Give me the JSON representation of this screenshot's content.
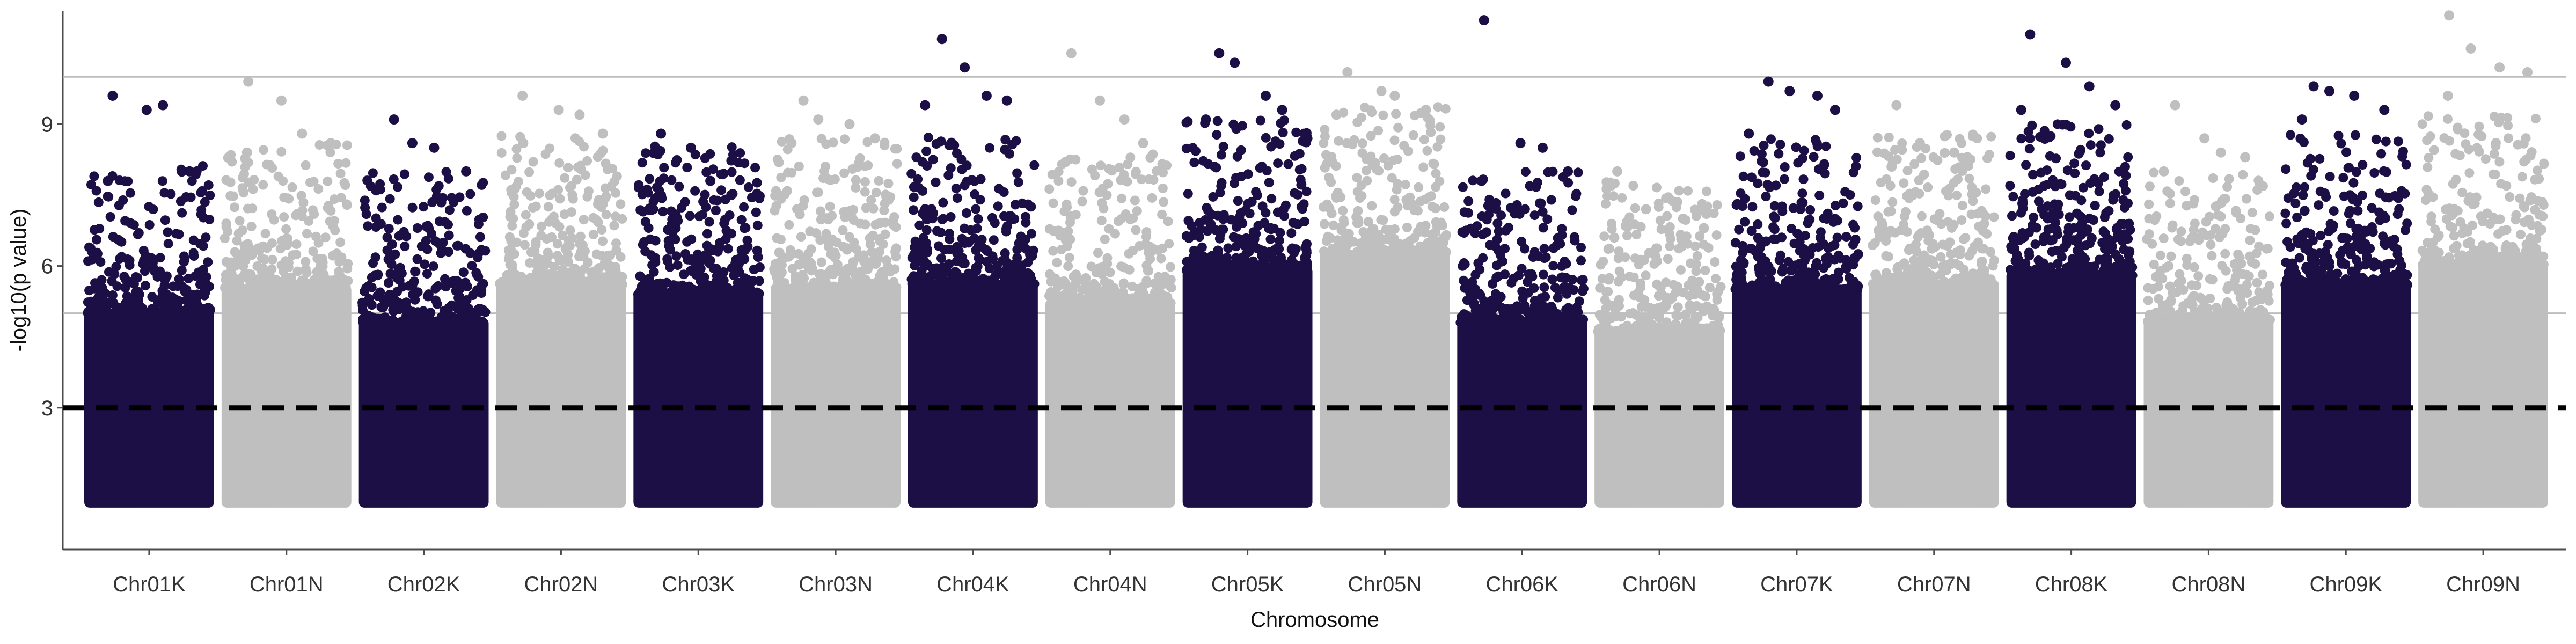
{
  "chart_data": {
    "type": "scatter",
    "subtype": "manhattan",
    "title": "",
    "xlabel": "Chromosome",
    "ylabel": "-log10(p value)",
    "categories": [
      "Chr01K",
      "Chr01N",
      "Chr02K",
      "Chr02N",
      "Chr03K",
      "Chr03N",
      "Chr04K",
      "Chr04N",
      "Chr05K",
      "Chr05N",
      "Chr06K",
      "Chr06N",
      "Chr07K",
      "Chr07N",
      "Chr08K",
      "Chr08N",
      "Chr09K",
      "Chr09N"
    ],
    "y_ticks": [
      3,
      6,
      9
    ],
    "ylim": [
      0,
      11.4
    ],
    "point_floor": 1.0,
    "threshold_line": 3.0,
    "reference_lines": [
      5.0,
      10.0
    ],
    "colors": {
      "dark_series": "#1c0f45",
      "light_series": "#bfbfbf",
      "threshold": "#000000",
      "reference": "#bdbdbd"
    },
    "series": [
      {
        "chromosome": "Chr01K",
        "color_key": "dark",
        "approx_body_max": 6.0,
        "notable_peaks": [
          9.6,
          9.3,
          9.4,
          8.0,
          7.8
        ]
      },
      {
        "chromosome": "Chr01N",
        "color_key": "light",
        "approx_body_max": 6.5,
        "notable_peaks": [
          9.9,
          9.5,
          8.8,
          8.6,
          8.4
        ]
      },
      {
        "chromosome": "Chr02K",
        "color_key": "dark",
        "approx_body_max": 5.8,
        "notable_peaks": [
          9.1,
          8.6,
          8.5,
          8.0,
          7.6
        ]
      },
      {
        "chromosome": "Chr02N",
        "color_key": "light",
        "approx_body_max": 6.6,
        "notable_peaks": [
          9.6,
          9.3,
          9.2,
          8.8,
          8.6
        ]
      },
      {
        "chromosome": "Chr03K",
        "color_key": "dark",
        "approx_body_max": 6.4,
        "notable_peaks": [
          8.8,
          8.5,
          7.8,
          7.5,
          7.2
        ]
      },
      {
        "chromosome": "Chr03N",
        "color_key": "light",
        "approx_body_max": 6.5,
        "notable_peaks": [
          9.5,
          9.1,
          9.0,
          8.7,
          8.6
        ]
      },
      {
        "chromosome": "Chr04K",
        "color_key": "dark",
        "approx_body_max": 6.6,
        "notable_peaks": [
          10.8,
          10.2,
          9.6,
          9.5,
          9.4
        ]
      },
      {
        "chromosome": "Chr04N",
        "color_key": "light",
        "approx_body_max": 6.2,
        "notable_peaks": [
          10.5,
          9.5,
          9.1,
          8.6,
          8.2
        ]
      },
      {
        "chromosome": "Chr05K",
        "color_key": "dark",
        "approx_body_max": 6.9,
        "notable_peaks": [
          10.5,
          10.3,
          9.6,
          9.3,
          9.1
        ]
      },
      {
        "chromosome": "Chr05N",
        "color_key": "light",
        "approx_body_max": 7.2,
        "notable_peaks": [
          10.1,
          9.7,
          9.6,
          9.3,
          9.2
        ]
      },
      {
        "chromosome": "Chr06K",
        "color_key": "dark",
        "approx_body_max": 5.8,
        "notable_peaks": [
          11.2,
          8.6,
          8.5,
          8.0,
          7.8
        ]
      },
      {
        "chromosome": "Chr06N",
        "color_key": "light",
        "approx_body_max": 5.6,
        "notable_peaks": [
          8.0,
          7.2,
          7.0,
          6.8,
          6.6
        ]
      },
      {
        "chromosome": "Chr07K",
        "color_key": "dark",
        "approx_body_max": 6.5,
        "notable_peaks": [
          9.9,
          9.7,
          9.6,
          9.3,
          8.8
        ]
      },
      {
        "chromosome": "Chr07N",
        "color_key": "light",
        "approx_body_max": 6.6,
        "notable_peaks": [
          9.4,
          8.6,
          8.4,
          8.3,
          8.1
        ]
      },
      {
        "chromosome": "Chr08K",
        "color_key": "dark",
        "approx_body_max": 6.8,
        "notable_peaks": [
          10.9,
          10.3,
          9.8,
          9.4,
          9.3
        ]
      },
      {
        "chromosome": "Chr08N",
        "color_key": "light",
        "approx_body_max": 5.8,
        "notable_peaks": [
          9.4,
          8.7,
          8.4,
          8.3,
          8.0
        ]
      },
      {
        "chromosome": "Chr09K",
        "color_key": "dark",
        "approx_body_max": 6.6,
        "notable_peaks": [
          9.8,
          9.7,
          9.6,
          9.3,
          9.1
        ]
      },
      {
        "chromosome": "Chr09N",
        "color_key": "light",
        "approx_body_max": 7.0,
        "notable_peaks": [
          11.3,
          10.6,
          10.2,
          10.1,
          9.6
        ]
      }
    ]
  }
}
